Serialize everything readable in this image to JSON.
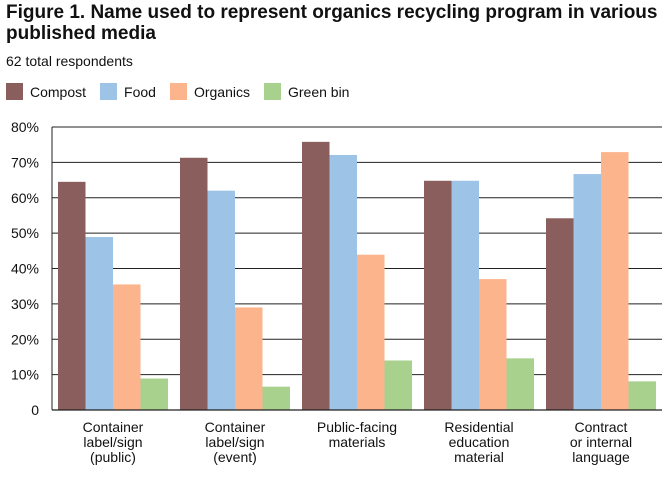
{
  "title": "Figure 1. Name used to represent organics recycling program in various published media",
  "subtitle": "62 total respondents",
  "chart_data": {
    "type": "bar",
    "categories": [
      [
        "Container",
        "label/sign",
        "(public)"
      ],
      [
        "Container",
        "label/sign",
        "(event)"
      ],
      [
        "Public-facing",
        "materials"
      ],
      [
        "Residential",
        "education",
        "material"
      ],
      [
        "Contract",
        "or internal",
        "language"
      ]
    ],
    "series": [
      {
        "name": "Compost",
        "color": "#8b5e5e",
        "values": [
          64.5,
          71.3,
          75.8,
          64.8,
          54.2
        ]
      },
      {
        "name": "Food",
        "color": "#9dc3e6",
        "values": [
          48.9,
          62.0,
          72.1,
          64.8,
          66.7
        ]
      },
      {
        "name": "Organics",
        "color": "#fbb48c",
        "values": [
          35.5,
          29.0,
          43.9,
          37.0,
          72.9
        ]
      },
      {
        "name": "Green bin",
        "color": "#a9d18e",
        "values": [
          8.9,
          6.6,
          14.0,
          14.6,
          8.1
        ]
      }
    ],
    "y_ticks": [
      "0",
      "10%",
      "20%",
      "30%",
      "40%",
      "50%",
      "60%",
      "70%",
      "80%"
    ],
    "ylim": [
      0,
      80
    ],
    "grid": true,
    "legend_position": "top-left"
  }
}
